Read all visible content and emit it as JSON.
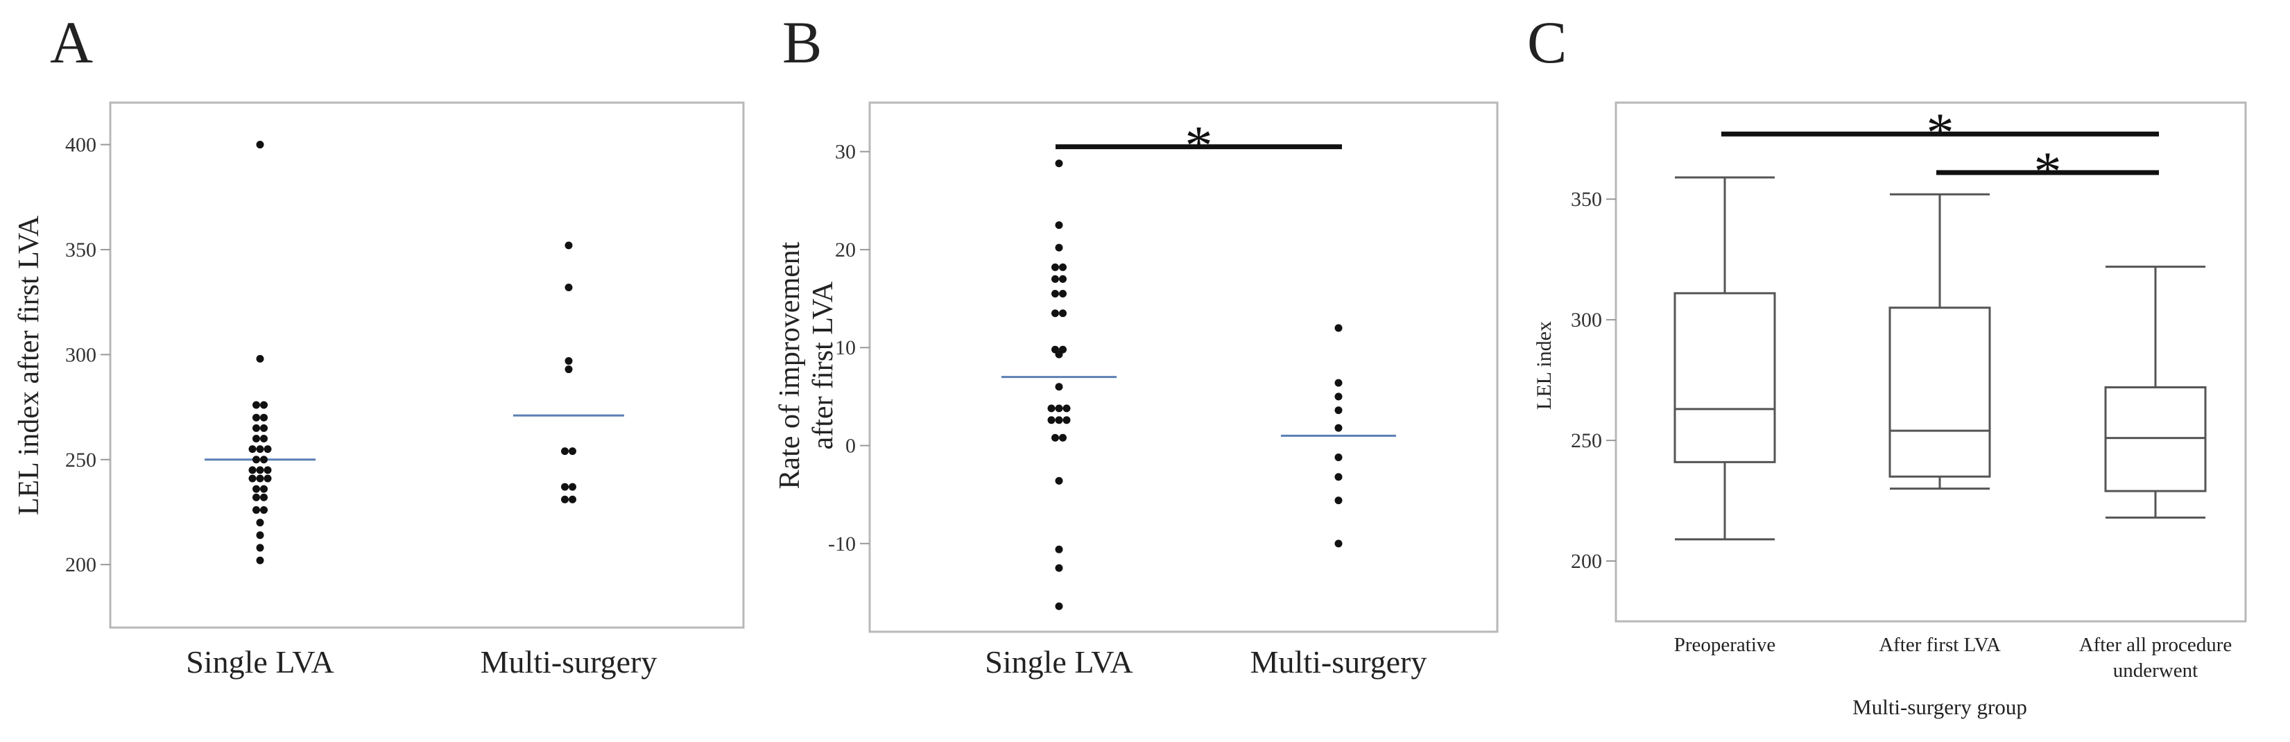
{
  "chart_data": [
    {
      "panel": "A",
      "type": "scatter",
      "ylabel": "LEL index after first LVA",
      "xlabel": "",
      "ylim": [
        170,
        420
      ],
      "yticks": [
        200,
        250,
        300,
        350,
        400
      ],
      "categories": [
        "Single LVA",
        "Multi-surgery"
      ],
      "series": [
        {
          "name": "Single LVA",
          "points": [
            {
              "value": 400,
              "dx": 0
            },
            {
              "value": 298,
              "dx": 0
            },
            {
              "value": 276,
              "dx": -0.5
            },
            {
              "value": 276,
              "dx": 0.5
            },
            {
              "value": 270,
              "dx": -0.5
            },
            {
              "value": 270,
              "dx": 0.5
            },
            {
              "value": 265,
              "dx": -0.5
            },
            {
              "value": 265,
              "dx": 0.5
            },
            {
              "value": 260,
              "dx": -0.5
            },
            {
              "value": 260,
              "dx": 0.5
            },
            {
              "value": 255,
              "dx": -1
            },
            {
              "value": 255,
              "dx": 0
            },
            {
              "value": 255,
              "dx": 1
            },
            {
              "value": 250,
              "dx": -0.5
            },
            {
              "value": 250,
              "dx": 0.5
            },
            {
              "value": 245,
              "dx": -1
            },
            {
              "value": 245,
              "dx": 0
            },
            {
              "value": 245,
              "dx": 1
            },
            {
              "value": 241,
              "dx": -1
            },
            {
              "value": 241,
              "dx": 0
            },
            {
              "value": 241,
              "dx": 1
            },
            {
              "value": 236,
              "dx": -0.5
            },
            {
              "value": 236,
              "dx": 0.5
            },
            {
              "value": 232,
              "dx": -0.5
            },
            {
              "value": 232,
              "dx": 0.5
            },
            {
              "value": 226,
              "dx": -0.5
            },
            {
              "value": 226,
              "dx": 0.5
            },
            {
              "value": 220,
              "dx": 0
            },
            {
              "value": 214,
              "dx": 0
            },
            {
              "value": 208,
              "dx": 0
            },
            {
              "value": 202,
              "dx": 0
            }
          ],
          "mean": 250
        },
        {
          "name": "Multi-surgery",
          "points": [
            {
              "value": 352,
              "dx": 0
            },
            {
              "value": 332,
              "dx": 0
            },
            {
              "value": 297,
              "dx": 0
            },
            {
              "value": 293,
              "dx": 0
            },
            {
              "value": 254,
              "dx": -0.5
            },
            {
              "value": 254,
              "dx": 0.5
            },
            {
              "value": 237,
              "dx": -0.5
            },
            {
              "value": 237,
              "dx": 0.5
            },
            {
              "value": 231,
              "dx": -0.5
            },
            {
              "value": 231,
              "dx": 0.5
            }
          ],
          "mean": 271
        }
      ],
      "mean_line_color": "#5b7fb5",
      "point_color": "#111111"
    },
    {
      "panel": "B",
      "type": "scatter",
      "ylabel_lines": [
        "Rate of improvement",
        "after first LVA"
      ],
      "xlabel": "",
      "ylim": [
        -19,
        35
      ],
      "yticks": [
        -10,
        0,
        10,
        20,
        30
      ],
      "categories": [
        "Single LVA",
        "Multi-surgery"
      ],
      "series": [
        {
          "name": "Single LVA",
          "points": [
            {
              "value": 28.8,
              "dx": 0
            },
            {
              "value": 22.5,
              "dx": 0
            },
            {
              "value": 20.2,
              "dx": 0
            },
            {
              "value": 18.2,
              "dx": -0.5
            },
            {
              "value": 18.2,
              "dx": 0.5
            },
            {
              "value": 17.0,
              "dx": -0.5
            },
            {
              "value": 17.0,
              "dx": 0.5
            },
            {
              "value": 15.5,
              "dx": -0.5
            },
            {
              "value": 15.5,
              "dx": 0.5
            },
            {
              "value": 13.5,
              "dx": -0.5
            },
            {
              "value": 13.5,
              "dx": 0.5
            },
            {
              "value": 9.8,
              "dx": -0.5
            },
            {
              "value": 9.8,
              "dx": 0.5
            },
            {
              "value": 9.3,
              "dx": 0
            },
            {
              "value": 6.0,
              "dx": 0
            },
            {
              "value": 3.8,
              "dx": -1
            },
            {
              "value": 3.8,
              "dx": 0
            },
            {
              "value": 3.8,
              "dx": 1
            },
            {
              "value": 2.6,
              "dx": -1
            },
            {
              "value": 2.6,
              "dx": 0
            },
            {
              "value": 2.6,
              "dx": 1
            },
            {
              "value": 0.8,
              "dx": -0.5
            },
            {
              "value": 0.8,
              "dx": 0.5
            },
            {
              "value": -3.6,
              "dx": 0
            },
            {
              "value": -10.6,
              "dx": 0
            },
            {
              "value": -12.5,
              "dx": 0
            },
            {
              "value": -16.4,
              "dx": 0
            }
          ],
          "mean": 7.0
        },
        {
          "name": "Multi-surgery",
          "points": [
            {
              "value": 12.0,
              "dx": 0
            },
            {
              "value": 6.4,
              "dx": 0
            },
            {
              "value": 5.0,
              "dx": 0
            },
            {
              "value": 3.6,
              "dx": 0
            },
            {
              "value": 1.8,
              "dx": 0
            },
            {
              "value": -1.2,
              "dx": 0
            },
            {
              "value": -3.2,
              "dx": 0
            },
            {
              "value": -5.6,
              "dx": 0
            },
            {
              "value": -10.0,
              "dx": 0
            }
          ],
          "mean": 1.0
        }
      ],
      "significance": [
        {
          "from": "Single LVA",
          "to": "Multi-surgery",
          "label": "*",
          "level": 30.5
        }
      ],
      "mean_line_color": "#5b7fb5",
      "point_color": "#111111"
    },
    {
      "panel": "C",
      "type": "box",
      "ylabel": "LEL index",
      "xlabel": "Multi-surgery group",
      "ylim": [
        175,
        390
      ],
      "yticks": [
        200,
        250,
        300,
        350
      ],
      "categories": [
        "Preoperative",
        "After first LVA",
        "After all procedure underwent"
      ],
      "category_lines": [
        [
          "Preoperative"
        ],
        [
          "After first LVA"
        ],
        [
          "After all procedure",
          "underwent"
        ]
      ],
      "boxes": [
        {
          "name": "Preoperative",
          "min": 209,
          "q1": 241,
          "median": 263,
          "q3": 311,
          "max": 359
        },
        {
          "name": "After first LVA",
          "min": 230,
          "q1": 235,
          "median": 254,
          "q3": 305,
          "max": 352
        },
        {
          "name": "After all procedure underwent",
          "min": 218,
          "q1": 229,
          "median": 251,
          "q3": 272,
          "max": 322
        }
      ],
      "significance": [
        {
          "from": "Preoperative",
          "to": "After all procedure underwent",
          "label": "*",
          "level": 377
        },
        {
          "from": "After first LVA",
          "to": "After all procedure underwent",
          "label": "*",
          "level": 361
        }
      ]
    }
  ]
}
